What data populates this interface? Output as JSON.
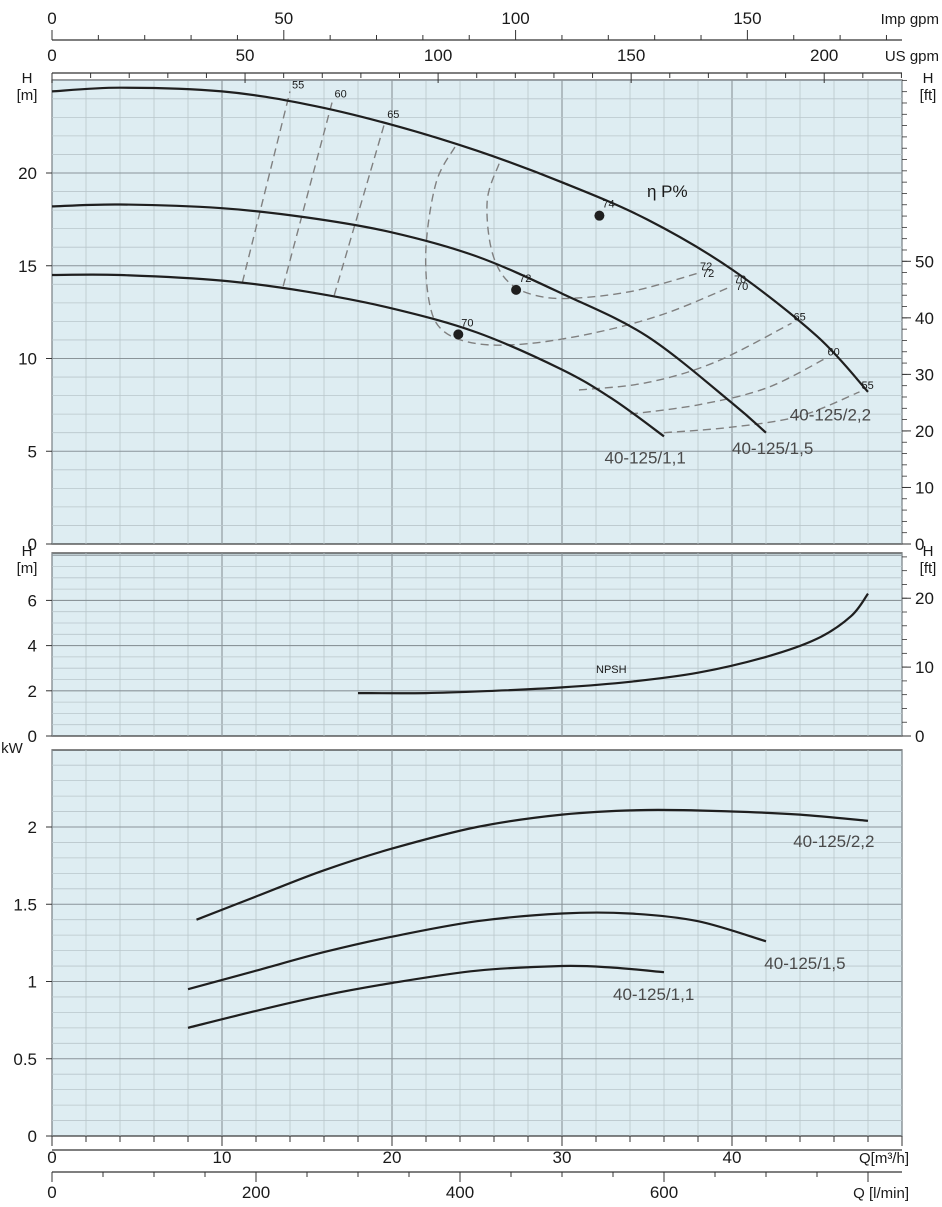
{
  "colors": {
    "panel_bg": "#deedf2",
    "grid_major": "#8a9499",
    "grid_minor": "#b9c6cb",
    "curve": "#1f1f1f",
    "efficiency_dashed": "#808080"
  },
  "axes": {
    "top_imp_gpm": {
      "ticks": [
        "0",
        "50",
        "100",
        "150"
      ],
      "unit": "Imp gpm"
    },
    "top_us_gpm": {
      "ticks": [
        "0",
        "50",
        "100",
        "150",
        "200"
      ],
      "unit": "US gpm"
    },
    "bottom_q_m3h": {
      "ticks": [
        "0",
        "10",
        "20",
        "30",
        "40"
      ],
      "unit": "Q[m³/h]"
    },
    "bottom_q_lmin": {
      "ticks": [
        "0",
        "200",
        "400",
        "600"
      ],
      "unit": "Q [l/min]"
    }
  },
  "chart_data": [
    {
      "type": "line",
      "panel": "head",
      "left_axis_label": [
        "H",
        "[m]"
      ],
      "right_axis_label": [
        "H",
        "[ft]"
      ],
      "xlim": [
        0,
        50
      ],
      "ylim": [
        0,
        25
      ],
      "left_ticks": [
        "0",
        "5",
        "10",
        "15",
        "20"
      ],
      "right_ticks": [
        "0",
        "10",
        "20",
        "30",
        "40",
        "50"
      ],
      "efficiency_title": "η P%",
      "series": [
        {
          "name": "40-125/2,2",
          "x": [
            0,
            4,
            10,
            15,
            20,
            25,
            30,
            35,
            40,
            45,
            48
          ],
          "y": [
            24.4,
            24.6,
            24.4,
            23.7,
            22.6,
            21.2,
            19.5,
            17.5,
            14.8,
            11.2,
            8.2
          ]
        },
        {
          "name": "40-125/1,5",
          "x": [
            0,
            4,
            10,
            15,
            20,
            25,
            30,
            35,
            40,
            42
          ],
          "y": [
            18.2,
            18.3,
            18.1,
            17.6,
            16.8,
            15.5,
            13.5,
            11.2,
            7.6,
            6.0
          ]
        },
        {
          "name": "40-125/1,1",
          "x": [
            0,
            4,
            10,
            15,
            20,
            25,
            30,
            33,
            36
          ],
          "y": [
            14.5,
            14.5,
            14.2,
            13.6,
            12.7,
            11.4,
            9.4,
            7.8,
            5.8
          ]
        }
      ],
      "duty_points": [
        {
          "label": "74",
          "x": 32.2,
          "y": 17.7
        },
        {
          "label": "72",
          "x": 27.3,
          "y": 13.7
        },
        {
          "label": "70",
          "x": 23.9,
          "y": 11.3
        }
      ],
      "efficiency_curves": [
        {
          "label_left": "55",
          "label_right": "55",
          "x": [
            11.2,
            14.0
          ],
          "y": [
            14.1,
            24.4
          ],
          "x_right": [
            36.0,
            40.0,
            44.0,
            47.5
          ],
          "y_right": [
            6.0,
            6.3,
            6.9,
            8.2
          ]
        },
        {
          "label_left": "60",
          "label_right": "60",
          "x": [
            13.6,
            16.5
          ],
          "y": [
            13.9,
            23.9
          ],
          "x_right": [
            34.0,
            38.0,
            42.0,
            45.5
          ],
          "y_right": [
            7.0,
            7.5,
            8.4,
            10.0
          ]
        },
        {
          "label_left": "65",
          "label_right": "65",
          "x": [
            16.6,
            19.6
          ],
          "y": [
            13.4,
            22.8
          ],
          "x_right": [
            31.0,
            35.0,
            39.0,
            43.5
          ],
          "y_right": [
            8.3,
            8.7,
            9.8,
            11.9
          ]
        },
        {
          "label_left": "70",
          "label_right": "70",
          "x": [
            23.7,
            22.6,
            22.0,
            22.2,
            23.0,
            25.0,
            28.0,
            32.0,
            36.0,
            40.0
          ],
          "y": [
            21.4,
            19.5,
            16.0,
            13.0,
            11.5,
            10.8,
            10.8,
            11.4,
            12.4,
            13.9
          ]
        },
        {
          "label_left": "72",
          "label_right": "72",
          "x": [
            26.3,
            25.6,
            25.9,
            27.0,
            29.0,
            31.5,
            34.5,
            38.0
          ],
          "y": [
            20.5,
            18.5,
            15.7,
            14.0,
            13.3,
            13.3,
            13.7,
            14.6
          ]
        }
      ],
      "curve_labels": [
        "40-125/2,2",
        "40-125/1,5",
        "40-125/1,1"
      ]
    },
    {
      "type": "line",
      "panel": "npsh",
      "left_axis_label": [
        "H",
        "[m]"
      ],
      "right_axis_label": [
        "H",
        "[ft]"
      ],
      "xlim": [
        0,
        50
      ],
      "ylim": [
        0,
        8
      ],
      "left_ticks": [
        "0",
        "2",
        "4",
        "6"
      ],
      "right_ticks": [
        "0",
        "10",
        "20"
      ],
      "series": [
        {
          "name": "NPSH",
          "x": [
            18,
            22,
            26,
            30,
            34,
            38,
            42,
            45,
            47,
            48
          ],
          "y": [
            1.9,
            1.9,
            2.0,
            2.15,
            2.4,
            2.8,
            3.5,
            4.3,
            5.3,
            6.3
          ]
        }
      ]
    },
    {
      "type": "line",
      "panel": "power",
      "left_axis_label": [
        "kW"
      ],
      "xlim": [
        0,
        50
      ],
      "ylim": [
        0,
        2.6
      ],
      "left_ticks": [
        "0",
        "0.5",
        "1",
        "1.5",
        "2"
      ],
      "series": [
        {
          "name": "40-125/2,2",
          "x": [
            8.5,
            12,
            16,
            20,
            25,
            30,
            35,
            40,
            44,
            48
          ],
          "y": [
            1.4,
            1.55,
            1.72,
            1.86,
            2.0,
            2.08,
            2.11,
            2.1,
            2.08,
            2.04
          ]
        },
        {
          "name": "40-125/1,5",
          "x": [
            8,
            12,
            16,
            20,
            25,
            30,
            34,
            38,
            42
          ],
          "y": [
            0.95,
            1.07,
            1.19,
            1.29,
            1.39,
            1.44,
            1.44,
            1.39,
            1.26
          ]
        },
        {
          "name": "40-125/1,1",
          "x": [
            8,
            12,
            16,
            20,
            25,
            30,
            33,
            36
          ],
          "y": [
            0.7,
            0.81,
            0.91,
            0.99,
            1.07,
            1.1,
            1.09,
            1.06
          ]
        }
      ],
      "curve_labels": [
        "40-125/2,2",
        "40-125/1,5",
        "40-125/1,1"
      ]
    }
  ]
}
